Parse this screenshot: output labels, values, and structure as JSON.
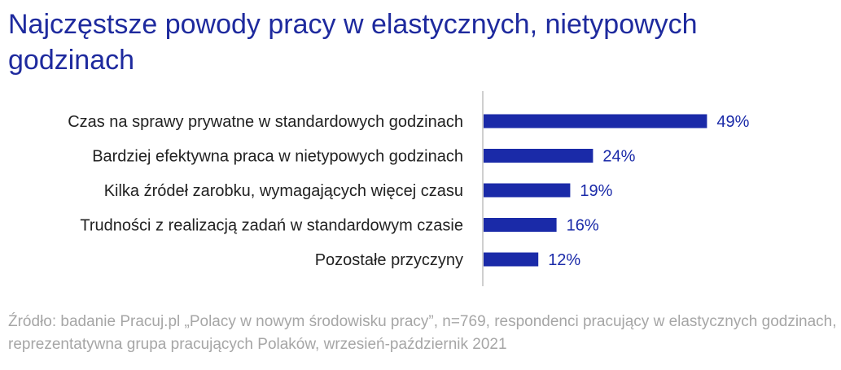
{
  "title": "Najczęstsze powody pracy w elastycznych, nietypowych godzinach",
  "source": "Źródło: badanie Pracuj.pl „Polacy w nowym środowisku pracy”, n=769, respondenci pracujący w elastycznych godzinach, reprezentatywna grupa pracujących Polaków, wrzesień-październik 2021",
  "colors": {
    "title": "#1e2a9e",
    "bar": "#1a2aa8",
    "value_label": "#1a2aa8",
    "category_label": "#222222",
    "axis": "#bfbfbf",
    "source": "#a6a6a6"
  },
  "chart_data": {
    "type": "bar",
    "orientation": "horizontal",
    "categories": [
      "Czas na sprawy prywatne w standardowych godzinach",
      "Bardziej efektywna praca w nietypowych godzinach",
      "Kilka źródeł zarobku, wymagających więcej czasu",
      "Trudności z realizacją zadań w standardowym czasie",
      "Pozostałe przyczyny"
    ],
    "values": [
      49,
      24,
      19,
      16,
      12
    ],
    "value_labels": [
      "49%",
      "24%",
      "19%",
      "16%",
      "12%"
    ],
    "unit": "%",
    "xlim": [
      0,
      100
    ],
    "grid": false,
    "legend": false
  }
}
